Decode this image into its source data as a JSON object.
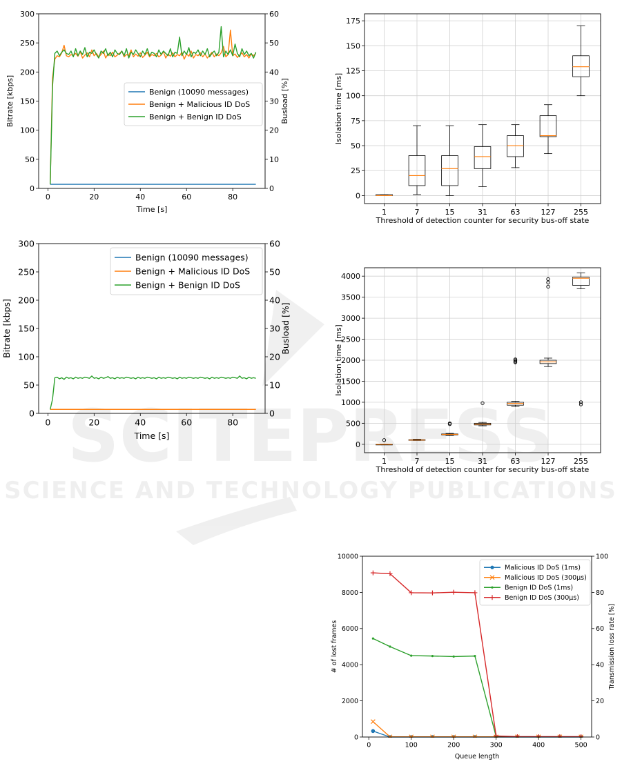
{
  "watermark": {
    "main": "SCITEPRESS",
    "sub": "SCIENCE AND TECHNOLOGY PUBLICATIONS"
  },
  "chart_data": [
    {
      "id": "c1",
      "type": "line",
      "xlabel": "Time [s]",
      "ylabel": "Bitrate [kbps]",
      "y2label": "Busload [%]",
      "xlim": [
        -4,
        94
      ],
      "ylim": [
        0,
        300
      ],
      "y2lim": [
        0,
        60
      ],
      "xticks": [
        0,
        20,
        40,
        60,
        80
      ],
      "yticks": [
        0,
        50,
        100,
        150,
        200,
        250,
        300
      ],
      "y2ticks": [
        0,
        10,
        20,
        30,
        40,
        50,
        60
      ],
      "legend_position": "center-right",
      "series": [
        {
          "name": "Benign (10090 messages)",
          "color": "#1f77b4",
          "x": [
            1,
            90
          ],
          "y": [
            7,
            7
          ]
        },
        {
          "name": "Benign + Malicious ID DoS",
          "color": "#ff7f0e",
          "x": [
            1,
            2,
            3,
            4,
            5,
            6,
            7,
            8,
            9,
            10,
            11,
            12,
            13,
            14,
            15,
            16,
            17,
            18,
            19,
            20,
            21,
            22,
            23,
            24,
            25,
            26,
            27,
            28,
            29,
            30,
            31,
            32,
            33,
            34,
            35,
            36,
            37,
            38,
            39,
            40,
            41,
            42,
            43,
            44,
            45,
            46,
            47,
            48,
            49,
            50,
            51,
            52,
            53,
            54,
            55,
            56,
            57,
            58,
            59,
            60,
            61,
            62,
            63,
            64,
            65,
            66,
            67,
            68,
            69,
            70,
            71,
            72,
            73,
            74,
            75,
            76,
            77,
            78,
            79,
            80,
            81,
            82,
            83,
            84,
            85,
            86,
            87,
            88,
            89,
            90
          ],
          "y": [
            7,
            190,
            222,
            228,
            226,
            233,
            246,
            228,
            226,
            230,
            228,
            232,
            227,
            235,
            224,
            229,
            233,
            226,
            238,
            228,
            232,
            226,
            230,
            236,
            224,
            231,
            228,
            234,
            226,
            229,
            232,
            236,
            226,
            230,
            228,
            238,
            226,
            231,
            227,
            233,
            225,
            229,
            234,
            226,
            230,
            228,
            232,
            226,
            229,
            235,
            224,
            231,
            227,
            233,
            226,
            230,
            228,
            234,
            222,
            231,
            227,
            236,
            224,
            230,
            228,
            233,
            226,
            231,
            224,
            229,
            234,
            226,
            231,
            228,
            233,
            244,
            226,
            230,
            272,
            228,
            231,
            225,
            229,
            233,
            226,
            230,
            224,
            231,
            228,
            232
          ]
        },
        {
          "name": "Benign + Benign ID DoS",
          "color": "#2ca02c",
          "x": [
            1,
            2,
            3,
            4,
            5,
            6,
            7,
            8,
            9,
            10,
            11,
            12,
            13,
            14,
            15,
            16,
            17,
            18,
            19,
            20,
            21,
            22,
            23,
            24,
            25,
            26,
            27,
            28,
            29,
            30,
            31,
            32,
            33,
            34,
            35,
            36,
            37,
            38,
            39,
            40,
            41,
            42,
            43,
            44,
            45,
            46,
            47,
            48,
            49,
            50,
            51,
            52,
            53,
            54,
            55,
            56,
            57,
            58,
            59,
            60,
            61,
            62,
            63,
            64,
            65,
            66,
            67,
            68,
            69,
            70,
            71,
            72,
            73,
            74,
            75,
            76,
            77,
            78,
            79,
            80,
            81,
            82,
            83,
            84,
            85,
            86,
            87,
            88,
            89,
            90
          ],
          "y": [
            7,
            175,
            232,
            236,
            228,
            234,
            238,
            232,
            230,
            236,
            226,
            240,
            228,
            236,
            230,
            242,
            226,
            234,
            232,
            238,
            230,
            224,
            236,
            232,
            240,
            228,
            234,
            226,
            238,
            232,
            230,
            236,
            228,
            240,
            224,
            234,
            230,
            238,
            232,
            226,
            236,
            230,
            240,
            228,
            234,
            232,
            226,
            238,
            230,
            236,
            232,
            228,
            240,
            226,
            234,
            232,
            260,
            228,
            236,
            230,
            242,
            226,
            234,
            232,
            238,
            228,
            236,
            230,
            240,
            226,
            232,
            236,
            228,
            234,
            278,
            226,
            236,
            230,
            238,
            228,
            248,
            232,
            226,
            240,
            230,
            236,
            228,
            232,
            224,
            234
          ]
        }
      ]
    },
    {
      "id": "c2",
      "type": "box",
      "xlabel": "Threshold of detection counter for security bus-off state",
      "ylabel": "Isolation time [ms]",
      "ylim": [
        -8,
        182
      ],
      "yticks": [
        0,
        25,
        50,
        75,
        100,
        125,
        150,
        175
      ],
      "categories": [
        "1",
        "7",
        "15",
        "31",
        "63",
        "127",
        "255"
      ],
      "boxes": [
        {
          "whislo": 0,
          "q1": 0,
          "med": 0,
          "q3": 1,
          "whishi": 1,
          "fliers": []
        },
        {
          "whislo": 1,
          "q1": 10,
          "med": 20,
          "q3": 40,
          "whishi": 70,
          "fliers": []
        },
        {
          "whislo": 0,
          "q1": 10,
          "med": 27,
          "q3": 40,
          "whishi": 70,
          "fliers": []
        },
        {
          "whislo": 9,
          "q1": 27,
          "med": 39,
          "q3": 49,
          "whishi": 71,
          "fliers": []
        },
        {
          "whislo": 28,
          "q1": 39,
          "med": 50,
          "q3": 60,
          "whishi": 71,
          "fliers": []
        },
        {
          "whislo": 42,
          "q1": 59,
          "med": 60,
          "q3": 80,
          "whishi": 91,
          "fliers": []
        },
        {
          "whislo": 100,
          "q1": 119,
          "med": 129,
          "q3": 140,
          "whishi": 170,
          "fliers": []
        }
      ]
    },
    {
      "id": "c3",
      "type": "line",
      "xlabel": "Time [s]",
      "ylabel": "Bitrate [kbps]",
      "y2label": "Busload [%]",
      "xlim": [
        -4,
        94
      ],
      "ylim": [
        0,
        300
      ],
      "y2lim": [
        0,
        60
      ],
      "xticks": [
        0,
        20,
        40,
        60,
        80
      ],
      "yticks": [
        0,
        50,
        100,
        150,
        200,
        250,
        300
      ],
      "y2ticks": [
        0,
        10,
        20,
        30,
        40,
        50,
        60
      ],
      "legend_position": "top-right",
      "series": [
        {
          "name": "Benign (10090 messages)",
          "color": "#1f77b4",
          "x": [
            1,
            90
          ],
          "y": [
            7,
            7
          ]
        },
        {
          "name": "Benign + Malicious ID DoS",
          "color": "#ff7f0e",
          "x": [
            1,
            90
          ],
          "y": [
            7,
            7
          ]
        },
        {
          "name": "Benign + Benign ID DoS",
          "color": "#2ca02c",
          "x": [
            1,
            2,
            3,
            4,
            5,
            6,
            7,
            8,
            9,
            10,
            11,
            12,
            13,
            14,
            15,
            16,
            17,
            18,
            19,
            20,
            21,
            22,
            23,
            24,
            25,
            26,
            27,
            28,
            29,
            30,
            31,
            32,
            33,
            34,
            35,
            36,
            37,
            38,
            39,
            40,
            41,
            42,
            43,
            44,
            45,
            46,
            47,
            48,
            49,
            50,
            51,
            52,
            53,
            54,
            55,
            56,
            57,
            58,
            59,
            60,
            61,
            62,
            63,
            64,
            65,
            66,
            67,
            68,
            69,
            70,
            71,
            72,
            73,
            74,
            75,
            76,
            77,
            78,
            79,
            80,
            81,
            82,
            83,
            84,
            85,
            86,
            87,
            88,
            89,
            90
          ],
          "y": [
            7,
            25,
            63,
            64,
            61,
            63,
            60,
            64,
            62,
            63,
            61,
            64,
            62,
            63,
            62,
            64,
            63,
            62,
            66,
            62,
            63,
            61,
            64,
            62,
            63,
            65,
            62,
            63,
            61,
            64,
            62,
            63,
            62,
            64,
            63,
            62,
            63,
            61,
            64,
            62,
            63,
            62,
            64,
            63,
            62,
            63,
            61,
            64,
            62,
            63,
            62,
            64,
            63,
            62,
            63,
            61,
            64,
            62,
            63,
            62,
            64,
            63,
            62,
            63,
            62,
            64,
            63,
            62,
            63,
            61,
            64,
            62,
            63,
            62,
            64,
            63,
            62,
            63,
            62,
            64,
            63,
            62,
            66,
            62,
            63,
            61,
            64,
            62,
            63,
            62
          ]
        }
      ]
    },
    {
      "id": "c4",
      "type": "box",
      "xlabel": "Threshold of detection counter for security bus-off state",
      "ylabel": "Isolation time [ms]",
      "ylim": [
        -200,
        4200
      ],
      "yticks": [
        0,
        500,
        1000,
        1500,
        2000,
        2500,
        3000,
        3500,
        4000
      ],
      "categories": [
        "1",
        "7",
        "15",
        "31",
        "63",
        "127",
        "255"
      ],
      "boxes": [
        {
          "whislo": 0,
          "q1": 0,
          "med": 0,
          "q3": 0,
          "whishi": 0,
          "fliers": [
            100
          ]
        },
        {
          "whislo": 90,
          "q1": 95,
          "med": 100,
          "q3": 110,
          "whishi": 120,
          "fliers": []
        },
        {
          "whislo": 210,
          "q1": 225,
          "med": 235,
          "q3": 245,
          "whishi": 260,
          "fliers": [
            480,
            500
          ]
        },
        {
          "whislo": 440,
          "q1": 460,
          "med": 480,
          "q3": 500,
          "whishi": 520,
          "fliers": [
            980
          ]
        },
        {
          "whislo": 900,
          "q1": 930,
          "med": 970,
          "q3": 1000,
          "whishi": 1020,
          "fliers": [
            1950,
            1970,
            2000,
            2020
          ]
        },
        {
          "whislo": 1850,
          "q1": 1920,
          "med": 1960,
          "q3": 2000,
          "whishi": 2050,
          "fliers": [
            3750,
            3850,
            3930
          ]
        },
        {
          "whislo": 3700,
          "q1": 3780,
          "med": 3950,
          "q3": 3980,
          "whishi": 4080,
          "fliers": [
            950,
            1000
          ]
        }
      ]
    },
    {
      "id": "c5",
      "type": "line",
      "xlabel": "Queue length",
      "ylabel": "# of lost frames",
      "y2label": "Transmission loss rate [%]",
      "xlim": [
        -15,
        525
      ],
      "ylim": [
        0,
        10000
      ],
      "y2lim": [
        0,
        100
      ],
      "xticks": [
        0,
        100,
        200,
        300,
        400,
        500
      ],
      "yticks": [
        0,
        2000,
        4000,
        6000,
        8000,
        10000
      ],
      "y2ticks": [
        0,
        20,
        40,
        60,
        80,
        100
      ],
      "legend_position": "top-right",
      "series": [
        {
          "name": "Malicious ID DoS (1ms)",
          "color": "#1f77b4",
          "marker": "dot",
          "x": [
            10,
            50,
            100,
            150,
            200,
            250,
            300,
            350,
            400,
            450,
            500
          ],
          "y": [
            330,
            0,
            0,
            0,
            0,
            0,
            0,
            0,
            0,
            0,
            0
          ]
        },
        {
          "name": "Malicious ID DoS (300µs)",
          "color": "#ff7f0e",
          "marker": "x",
          "x": [
            10,
            50,
            100,
            150,
            200,
            250,
            300,
            350,
            400,
            450,
            500
          ],
          "y": [
            850,
            10,
            10,
            10,
            10,
            10,
            10,
            10,
            10,
            10,
            10
          ]
        },
        {
          "name": "Benign ID DoS (1ms)",
          "color": "#2ca02c",
          "marker": "point",
          "x": [
            10,
            50,
            100,
            150,
            200,
            250,
            300,
            350,
            400,
            450,
            500
          ],
          "y": [
            5450,
            5000,
            4500,
            4480,
            4450,
            4480,
            20,
            10,
            10,
            10,
            10
          ]
        },
        {
          "name": "Benign ID DoS (300µs)",
          "color": "#d62728",
          "marker": "plus",
          "x": [
            10,
            50,
            100,
            150,
            200,
            250,
            300,
            350,
            400,
            450,
            500
          ],
          "y": [
            9080,
            9030,
            7980,
            7970,
            8010,
            7980,
            60,
            20,
            20,
            20,
            20
          ]
        }
      ]
    }
  ]
}
